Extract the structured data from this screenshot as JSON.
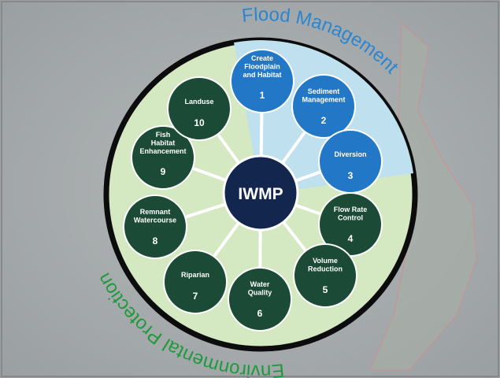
{
  "center": {
    "label": "IWMP"
  },
  "arcs": [
    {
      "label": "Flood Management",
      "color": "#2a86d0"
    },
    {
      "label": "Environmental Protection",
      "color": "#1e9a3c"
    }
  ],
  "nodes": [
    {
      "lines": [
        "Create",
        "Floodplain",
        "and Habitat"
      ],
      "number": 1,
      "color": "#2278c6"
    },
    {
      "lines": [
        "Sediment",
        "Management"
      ],
      "number": 2,
      "color": "#2278c6"
    },
    {
      "lines": [
        "Diversion"
      ],
      "number": 3,
      "color": "#2278c6"
    },
    {
      "lines": [
        "Flow Rate",
        "Control"
      ],
      "number": 4,
      "color": "#1b4a36"
    },
    {
      "lines": [
        "Volume",
        "Reduction"
      ],
      "number": 5,
      "color": "#1b4a36"
    },
    {
      "lines": [
        "Water",
        "Quality"
      ],
      "number": 6,
      "color": "#1b4a36"
    },
    {
      "lines": [
        "Riparian"
      ],
      "number": 7,
      "color": "#1b4a36"
    },
    {
      "lines": [
        "Remnant",
        "Watercourse"
      ],
      "number": 8,
      "color": "#1b4a36"
    },
    {
      "lines": [
        "Fish",
        "Habitat",
        "Enhancement"
      ],
      "number": 9,
      "color": "#1b4a36"
    },
    {
      "lines": [
        "Landuse"
      ],
      "number": 10,
      "color": "#1b4a36"
    }
  ]
}
